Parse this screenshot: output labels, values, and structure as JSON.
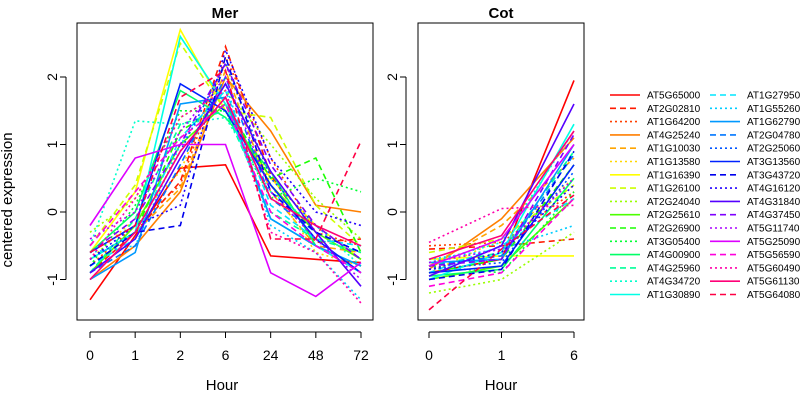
{
  "chart_data": {
    "type": "line",
    "ylabel": "centered expression",
    "legend_position": "right",
    "panels": [
      {
        "title": "Mer",
        "xlabel": "Hour",
        "x": [
          "0",
          "1",
          "2",
          "6",
          "24",
          "48",
          "72"
        ],
        "ylim": [
          -1.6,
          2.8
        ],
        "yticks": [
          -1,
          0,
          1,
          2
        ]
      },
      {
        "title": "Cot",
        "xlabel": "Hour",
        "x": [
          "0",
          "1",
          "6"
        ],
        "ylim": [
          -1.6,
          2.8
        ],
        "yticks": [
          -1,
          0,
          1,
          2
        ]
      }
    ],
    "series": [
      {
        "name": "AT5G65000",
        "color": "#ff0000",
        "dash": "solid",
        "mer": [
          -1.3,
          -0.35,
          0.65,
          0.7,
          -0.65,
          -0.7,
          -0.75
        ],
        "cot": [
          -0.9,
          -0.7,
          1.95
        ]
      },
      {
        "name": "AT2G02810",
        "color": "#ff1a00",
        "dash": "dashed",
        "mer": [
          -0.9,
          -0.3,
          0.45,
          2.45,
          0.55,
          -0.45,
          -0.4
        ],
        "cot": [
          -0.55,
          -0.5,
          -0.4
        ]
      },
      {
        "name": "AT1G64200",
        "color": "#ff4000",
        "dash": "dotted",
        "mer": [
          -0.8,
          -0.2,
          0.4,
          2.3,
          0.8,
          -0.3,
          -0.5
        ],
        "cot": [
          -0.5,
          -0.45,
          0.3
        ]
      },
      {
        "name": "AT4G25240",
        "color": "#ff7f00",
        "dash": "solid",
        "mer": [
          -1.0,
          -0.5,
          0.3,
          2.0,
          1.2,
          0.1,
          0.0
        ],
        "cot": [
          -0.85,
          -0.1,
          1.1
        ]
      },
      {
        "name": "AT1G10030",
        "color": "#ffa500",
        "dash": "dashed",
        "mer": [
          -0.8,
          -0.3,
          0.35,
          2.1,
          0.3,
          -0.5,
          -0.6
        ],
        "cot": [
          -0.8,
          -0.2,
          0.8
        ]
      },
      {
        "name": "AT1G13580",
        "color": "#ffd700",
        "dash": "dotted",
        "mer": [
          -0.7,
          -0.1,
          0.6,
          2.2,
          0.4,
          -0.6,
          -0.8
        ],
        "cot": [
          -0.9,
          -0.4,
          0.5
        ]
      },
      {
        "name": "AT1G16390",
        "color": "#ffff00",
        "dash": "solid",
        "mer": [
          -0.6,
          0.3,
          2.7,
          1.5,
          0.5,
          -0.2,
          -0.7
        ],
        "cot": [
          -0.7,
          -0.65,
          -0.65
        ]
      },
      {
        "name": "AT1G26100",
        "color": "#ccff00",
        "dash": "dashed",
        "mer": [
          -0.5,
          0.4,
          2.5,
          1.5,
          1.4,
          0.1,
          -0.5
        ],
        "cot": [
          -0.6,
          -0.4,
          0.4
        ]
      },
      {
        "name": "AT2G24040",
        "color": "#99ff00",
        "dash": "dotted",
        "mer": [
          -0.3,
          0.2,
          1.4,
          1.8,
          1.0,
          0.2,
          -0.4
        ],
        "cot": [
          -1.2,
          -1.0,
          -0.3
        ]
      },
      {
        "name": "AT2G25610",
        "color": "#4dff00",
        "dash": "solid",
        "mer": [
          -0.9,
          -0.2,
          1.0,
          1.6,
          0.4,
          -0.3,
          -0.7
        ],
        "cot": [
          -1.0,
          -0.8,
          0.2
        ]
      },
      {
        "name": "AT2G26900",
        "color": "#1aff00",
        "dash": "dashed",
        "mer": [
          -0.7,
          -0.3,
          1.2,
          1.6,
          0.5,
          0.8,
          -0.6
        ],
        "cot": [
          -0.9,
          -0.7,
          0.7
        ]
      },
      {
        "name": "AT3G05400",
        "color": "#00ff33",
        "dash": "dotted",
        "mer": [
          -0.8,
          0.1,
          1.5,
          1.5,
          0.2,
          0.5,
          0.3
        ],
        "cot": [
          -0.8,
          -0.9,
          0.3
        ]
      },
      {
        "name": "AT4G00900",
        "color": "#00ff66",
        "dash": "solid",
        "mer": [
          -0.6,
          0.0,
          1.8,
          1.4,
          0.6,
          -0.5,
          -0.8
        ],
        "cot": [
          -0.95,
          -0.85,
          0.5
        ]
      },
      {
        "name": "AT4G25960",
        "color": "#00ff99",
        "dash": "dashed",
        "mer": [
          -0.9,
          -0.1,
          1.3,
          1.5,
          0.0,
          -0.4,
          -0.6
        ],
        "cot": [
          -0.8,
          -0.6,
          0.9
        ]
      },
      {
        "name": "AT4G34720",
        "color": "#00ffcc",
        "dash": "dotted",
        "mer": [
          -0.5,
          1.35,
          1.3,
          1.4,
          0.3,
          -0.2,
          -0.8
        ],
        "cot": [
          -0.75,
          -0.45,
          1.2
        ]
      },
      {
        "name": "AT1G30890",
        "color": "#00ffe5",
        "dash": "solid",
        "mer": [
          -0.7,
          -0.3,
          2.6,
          1.6,
          -0.1,
          -0.5,
          -0.9
        ],
        "cot": [
          -1.0,
          -0.6,
          1.3
        ]
      },
      {
        "name": "AT1G27950",
        "color": "#00e5ff",
        "dash": "dashed",
        "mer": [
          -0.8,
          -0.4,
          1.1,
          1.8,
          0.1,
          -0.4,
          -0.5
        ],
        "cot": [
          -0.9,
          -0.5,
          0.2
        ]
      },
      {
        "name": "AT1G55260",
        "color": "#00ccff",
        "dash": "dotted",
        "mer": [
          -0.6,
          -0.5,
          1.0,
          1.9,
          -0.2,
          -0.6,
          -1.3
        ],
        "cot": [
          -0.7,
          -0.55,
          -0.2
        ]
      },
      {
        "name": "AT1G62790",
        "color": "#0099ff",
        "dash": "solid",
        "mer": [
          -1.0,
          -0.6,
          1.6,
          1.7,
          -0.1,
          -0.5,
          -0.8
        ],
        "cot": [
          -0.75,
          -0.7,
          1.0
        ]
      },
      {
        "name": "AT2G04780",
        "color": "#0077ff",
        "dash": "dashed",
        "mer": [
          -0.9,
          -0.5,
          0.7,
          2.0,
          0.2,
          -0.3,
          -0.6
        ],
        "cot": [
          -0.8,
          -0.65,
          0.85
        ]
      },
      {
        "name": "AT2G25060",
        "color": "#0055ff",
        "dash": "dotted",
        "mer": [
          -0.7,
          -0.3,
          0.9,
          2.2,
          0.5,
          -0.2,
          -0.7
        ],
        "cot": [
          -0.85,
          -0.75,
          0.6
        ]
      },
      {
        "name": "AT3G13560",
        "color": "#0022ff",
        "dash": "solid",
        "mer": [
          -0.6,
          -0.2,
          1.9,
          1.5,
          0.4,
          -0.4,
          -0.9
        ],
        "cot": [
          -0.9,
          -0.8,
          0.7
        ]
      },
      {
        "name": "AT3G43720",
        "color": "#0000ee",
        "dash": "dashed",
        "mer": [
          -0.8,
          -0.3,
          -0.2,
          2.3,
          0.3,
          -0.3,
          -0.6
        ],
        "cot": [
          -1.0,
          -0.85,
          0.9
        ]
      },
      {
        "name": "AT4G16120",
        "color": "#2200ff",
        "dash": "dotted",
        "mer": [
          -0.7,
          -0.2,
          0.1,
          2.4,
          0.8,
          0.0,
          -0.2
        ],
        "cot": [
          -0.85,
          -0.6,
          0.4
        ]
      },
      {
        "name": "AT4G31840",
        "color": "#5500ff",
        "dash": "solid",
        "mer": [
          -0.9,
          -0.4,
          0.8,
          1.9,
          0.6,
          -0.3,
          -1.1
        ],
        "cot": [
          -0.95,
          -0.5,
          1.6
        ]
      },
      {
        "name": "AT4G37450",
        "color": "#7f00ff",
        "dash": "dashed",
        "mer": [
          -0.6,
          -0.1,
          1.0,
          2.2,
          0.7,
          -0.2,
          -0.7
        ],
        "cot": [
          -0.8,
          -0.7,
          1.15
        ]
      },
      {
        "name": "AT5G11740",
        "color": "#aa00ff",
        "dash": "dotted",
        "mer": [
          -0.4,
          0.0,
          1.2,
          2.0,
          0.3,
          -0.4,
          -1.0
        ],
        "cot": [
          -0.75,
          -0.55,
          0.5
        ]
      },
      {
        "name": "AT5G25090",
        "color": "#dd00ff",
        "dash": "solid",
        "mer": [
          -0.2,
          0.8,
          1.0,
          1.0,
          -0.9,
          -1.25,
          -0.75
        ],
        "cot": [
          -0.8,
          -0.4,
          1.0
        ]
      },
      {
        "name": "AT5G56590",
        "color": "#ff00dd",
        "dash": "dashed",
        "mer": [
          -0.5,
          0.3,
          1.1,
          1.6,
          0.0,
          -0.5,
          -0.9
        ],
        "cot": [
          -1.1,
          -0.9,
          0.2
        ]
      },
      {
        "name": "AT5G60490",
        "color": "#ff00aa",
        "dash": "dotted",
        "mer": [
          -0.7,
          0.2,
          1.4,
          1.8,
          -0.3,
          -0.6,
          -1.35
        ],
        "cot": [
          -0.45,
          0.05,
          0.1
        ]
      },
      {
        "name": "AT5G61130",
        "color": "#ff0077",
        "dash": "solid",
        "mer": [
          -1.0,
          -0.3,
          0.9,
          1.7,
          0.2,
          -0.2,
          -0.5
        ],
        "cot": [
          -0.7,
          -0.35,
          1.2
        ]
      },
      {
        "name": "AT5G64080",
        "color": "#ff0044",
        "dash": "dashed",
        "mer": [
          -0.6,
          -0.2,
          1.7,
          2.1,
          -0.4,
          -0.4,
          1.05
        ],
        "cot": [
          -1.45,
          -0.55,
          0.25
        ]
      }
    ]
  }
}
